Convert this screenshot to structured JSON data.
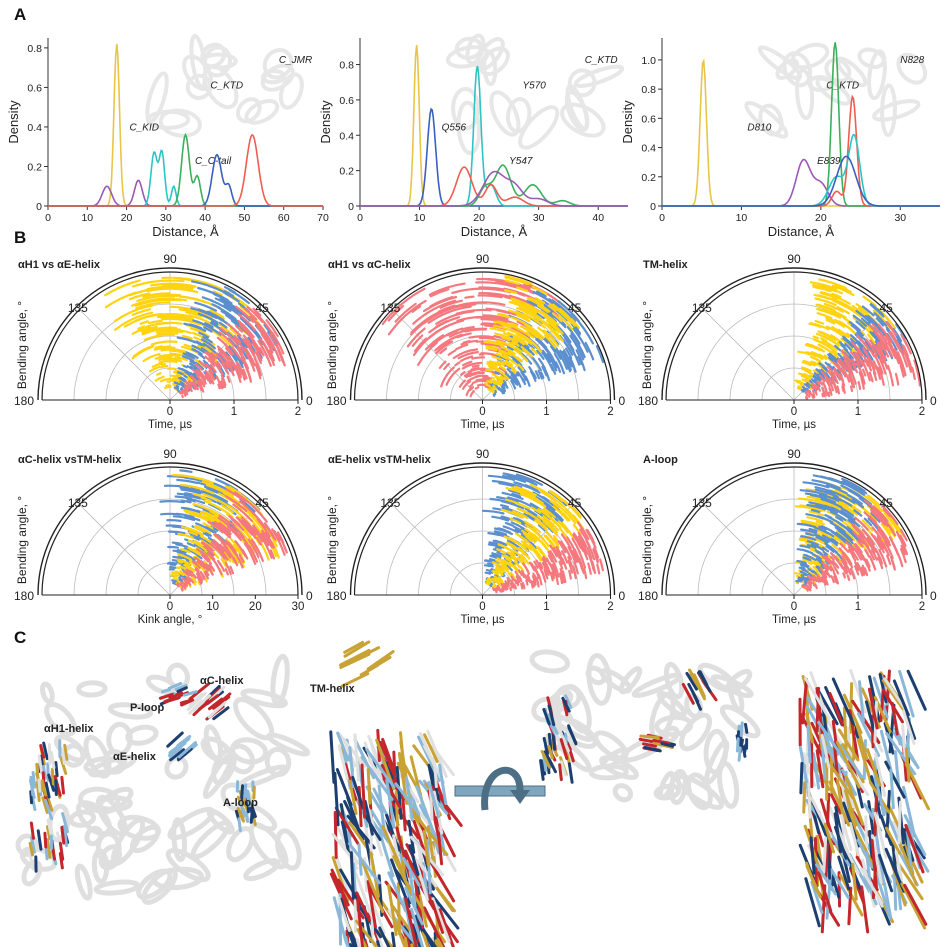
{
  "panel_letters": {
    "a": "A",
    "b": "B",
    "c": "C"
  },
  "chart_data": [
    {
      "type": "line",
      "panel": "A1",
      "xlabel": "Distance, Å",
      "ylabel": "Density",
      "xlim": [
        0,
        70
      ],
      "ylim": [
        0,
        0.85
      ],
      "xticks": [
        0,
        10,
        20,
        30,
        40,
        50,
        60,
        70
      ],
      "yticks": [
        0,
        0.2,
        0.4,
        0.6,
        0.8
      ],
      "inset_labels": [
        "C_KID",
        "C_KTD",
        "C_JMR",
        "C_C-tail"
      ],
      "series": [
        {
          "color": "#e8c547",
          "peaks": [
            [
              17.5,
              0.82,
              0.7
            ]
          ]
        },
        {
          "color": "#9b59b6",
          "peaks": [
            [
              15,
              0.1,
              1.2
            ],
            [
              23,
              0.13,
              1.0
            ]
          ]
        },
        {
          "color": "#2fc4c4",
          "peaks": [
            [
              27,
              0.27,
              0.8
            ],
            [
              29,
              0.27,
              0.7
            ],
            [
              32,
              0.1,
              0.6
            ]
          ]
        },
        {
          "color": "#3cb05c",
          "peaks": [
            [
              35,
              0.36,
              1.0
            ],
            [
              38,
              0.15,
              0.8
            ]
          ]
        },
        {
          "color": "#3b5fc0",
          "peaks": [
            [
              43,
              0.26,
              1.2
            ],
            [
              46,
              0.1,
              0.8
            ]
          ]
        },
        {
          "color": "#f05d50",
          "peaks": [
            [
              52,
              0.36,
              1.5
            ]
          ]
        }
      ]
    },
    {
      "type": "line",
      "panel": "A2",
      "xlabel": "Distance, Å",
      "ylabel": "Density",
      "xlim": [
        0,
        45
      ],
      "ylim": [
        0,
        0.95
      ],
      "xticks": [
        0,
        10,
        20,
        30,
        40
      ],
      "yticks": [
        0,
        0.2,
        0.4,
        0.6,
        0.8
      ],
      "inset_labels": [
        "Q556",
        "Y570",
        "C_KTD",
        "Y547"
      ],
      "series": [
        {
          "color": "#e8c547",
          "peaks": [
            [
              9.5,
              0.91,
              0.45
            ]
          ]
        },
        {
          "color": "#3b5fc0",
          "peaks": [
            [
              12,
              0.55,
              0.7
            ]
          ]
        },
        {
          "color": "#2fc4c4",
          "peaks": [
            [
              19.7,
              0.79,
              0.6
            ],
            [
              22,
              0.12,
              0.8
            ]
          ]
        },
        {
          "color": "#f05d50",
          "peaks": [
            [
              17.5,
              0.22,
              1.3
            ],
            [
              22,
              0.12,
              1.0
            ],
            [
              26,
              0.05,
              1.4
            ]
          ]
        },
        {
          "color": "#3cb05c",
          "peaks": [
            [
              21,
              0.1,
              1.0
            ],
            [
              24,
              0.23,
              1.3
            ],
            [
              29,
              0.12,
              1.4
            ],
            [
              34,
              0.03,
              1.2
            ]
          ]
        },
        {
          "color": "#9b59b6",
          "peaks": [
            [
              22.5,
              0.19,
              1.8
            ],
            [
              26,
              0.1,
              1.4
            ],
            [
              30,
              0.04,
              1.5
            ]
          ]
        }
      ]
    },
    {
      "type": "line",
      "panel": "A3",
      "xlabel": "Distance, Å",
      "ylabel": "Density",
      "xlim": [
        0,
        35
      ],
      "ylim": [
        0,
        1.15
      ],
      "xticks": [
        0,
        10,
        20,
        30
      ],
      "yticks": [
        0,
        0.2,
        0.4,
        0.6,
        0.8,
        1.0
      ],
      "inset_labels": [
        "D810",
        "C_KTD",
        "N828",
        "E839"
      ],
      "series": [
        {
          "color": "#e8c547",
          "peaks": [
            [
              5.2,
              1.0,
              0.4
            ]
          ]
        },
        {
          "color": "#9b59b6",
          "peaks": [
            [
              17.8,
              0.31,
              0.9
            ],
            [
              20,
              0.15,
              0.9
            ]
          ]
        },
        {
          "color": "#3cb05c",
          "peaks": [
            [
              21.8,
              1.12,
              0.45
            ]
          ]
        },
        {
          "color": "#f05d50",
          "peaks": [
            [
              24,
              0.75,
              0.5
            ],
            [
              22,
              0.1,
              0.6
            ]
          ]
        },
        {
          "color": "#2fc4c4",
          "peaks": [
            [
              24.2,
              0.47,
              0.7
            ],
            [
              22,
              0.2,
              1.0
            ]
          ]
        },
        {
          "color": "#3b5fc0",
          "peaks": [
            [
              23.2,
              0.34,
              1.2
            ]
          ]
        }
      ]
    },
    {
      "type": "polar",
      "panel": "B1",
      "title": "αH1 vs αE-helix",
      "ylabel": "Bending angle, °",
      "xlabel": "Time, µs",
      "angle_ticks": [
        "90",
        "135",
        "45",
        "180",
        "0"
      ],
      "radial_ticks": [
        "0",
        "1",
        "2"
      ],
      "radial_max": 2,
      "series": [
        {
          "name": "yellow",
          "color": "#ffd310",
          "seed": 11,
          "center": 72,
          "spread": 38
        },
        {
          "name": "blue",
          "color": "#5b8fce",
          "seed": 23,
          "center": 45,
          "spread": 22
        },
        {
          "name": "pink",
          "color": "#f4787e",
          "seed": 37,
          "center": 28,
          "spread": 16
        }
      ]
    },
    {
      "type": "polar",
      "panel": "B2",
      "title": "αH1 vs αC-helix",
      "ylabel": "Bending angle, °",
      "xlabel": "Time, µs",
      "angle_ticks": [
        "90",
        "135",
        "45",
        "180",
        "0"
      ],
      "radial_ticks": [
        "0",
        "1",
        "2"
      ],
      "radial_max": 2,
      "series": [
        {
          "name": "pink",
          "color": "#f4787e",
          "seed": 41,
          "center": 90,
          "spread": 45
        },
        {
          "name": "blue",
          "color": "#5b8fce",
          "seed": 53,
          "center": 38,
          "spread": 22
        },
        {
          "name": "yellow",
          "color": "#ffd310",
          "seed": 67,
          "center": 55,
          "spread": 20
        }
      ]
    },
    {
      "type": "polar",
      "panel": "B3",
      "title": "TM-helix",
      "ylabel": "Bending angle, °",
      "xlabel": "Time, µs",
      "angle_ticks": [
        "90",
        "135",
        "45",
        "180",
        "0"
      ],
      "radial_ticks": [
        "0",
        "1",
        "2"
      ],
      "radial_max": 2,
      "series": [
        {
          "name": "yellow",
          "color": "#ffd310",
          "seed": 71,
          "center": 52,
          "spread": 20
        },
        {
          "name": "blue",
          "color": "#5b8fce",
          "seed": 83,
          "center": 35,
          "spread": 12
        },
        {
          "name": "pink",
          "color": "#f4787e",
          "seed": 97,
          "center": 20,
          "spread": 14
        }
      ]
    },
    {
      "type": "polar",
      "panel": "B4",
      "title": "αC-helix vsTM-helix",
      "ylabel": "Bending angle, °",
      "xlabel": "Kink angle, °",
      "angle_ticks": [
        "90",
        "135",
        "45",
        "180",
        "0"
      ],
      "radial_ticks": [
        "0",
        "10",
        "20",
        "30"
      ],
      "radial_max": 30,
      "series": [
        {
          "name": "blue",
          "color": "#5b8fce",
          "seed": 101,
          "center": 62,
          "spread": 20
        },
        {
          "name": "yellow",
          "color": "#ffd310",
          "seed": 113,
          "center": 45,
          "spread": 26
        },
        {
          "name": "pink",
          "color": "#f4787e",
          "seed": 127,
          "center": 35,
          "spread": 16
        }
      ]
    },
    {
      "type": "polar",
      "panel": "B5",
      "title": "αE-helix vsTM-helix",
      "ylabel": "Bending angle, °",
      "xlabel": "Time, µs",
      "angle_ticks": [
        "90",
        "135",
        "45",
        "180",
        "0"
      ],
      "radial_ticks": [
        "0",
        "1",
        "2"
      ],
      "radial_max": 2,
      "series": [
        {
          "name": "blue",
          "color": "#5b8fce",
          "seed": 131,
          "center": 58,
          "spread": 18
        },
        {
          "name": "yellow",
          "color": "#ffd310",
          "seed": 139,
          "center": 45,
          "spread": 18
        },
        {
          "name": "pink",
          "color": "#f4787e",
          "seed": 149,
          "center": 18,
          "spread": 10
        }
      ]
    },
    {
      "type": "polar",
      "panel": "B6",
      "title": "A-loop",
      "ylabel": "Bending angle, °",
      "xlabel": "Time, µs",
      "angle_ticks": [
        "90",
        "135",
        "45",
        "180",
        "0"
      ],
      "radial_ticks": [
        "0",
        "1",
        "2"
      ],
      "radial_max": 2,
      "series": [
        {
          "name": "yellow",
          "color": "#ffd310",
          "seed": 151,
          "center": 50,
          "spread": 22
        },
        {
          "name": "blue",
          "color": "#5b8fce",
          "seed": 163,
          "center": 55,
          "spread": 18
        },
        {
          "name": "pink",
          "color": "#f4787e",
          "seed": 173,
          "center": 28,
          "spread": 14
        }
      ]
    }
  ],
  "structure_labels": {
    "ah1": "αH1-helix",
    "ploop": "P-loop",
    "ac": "αC-helix",
    "ae": "αE-helix",
    "aloop": "A-loop",
    "tm": "TM-helix"
  },
  "colors": {
    "yellow": "#ffd310",
    "blue": "#5b8fce",
    "pink": "#f4787e",
    "gold": "#c8a235",
    "red": "#c3272b",
    "navy": "#1d3f70",
    "lightblue": "#8bb8d8"
  }
}
